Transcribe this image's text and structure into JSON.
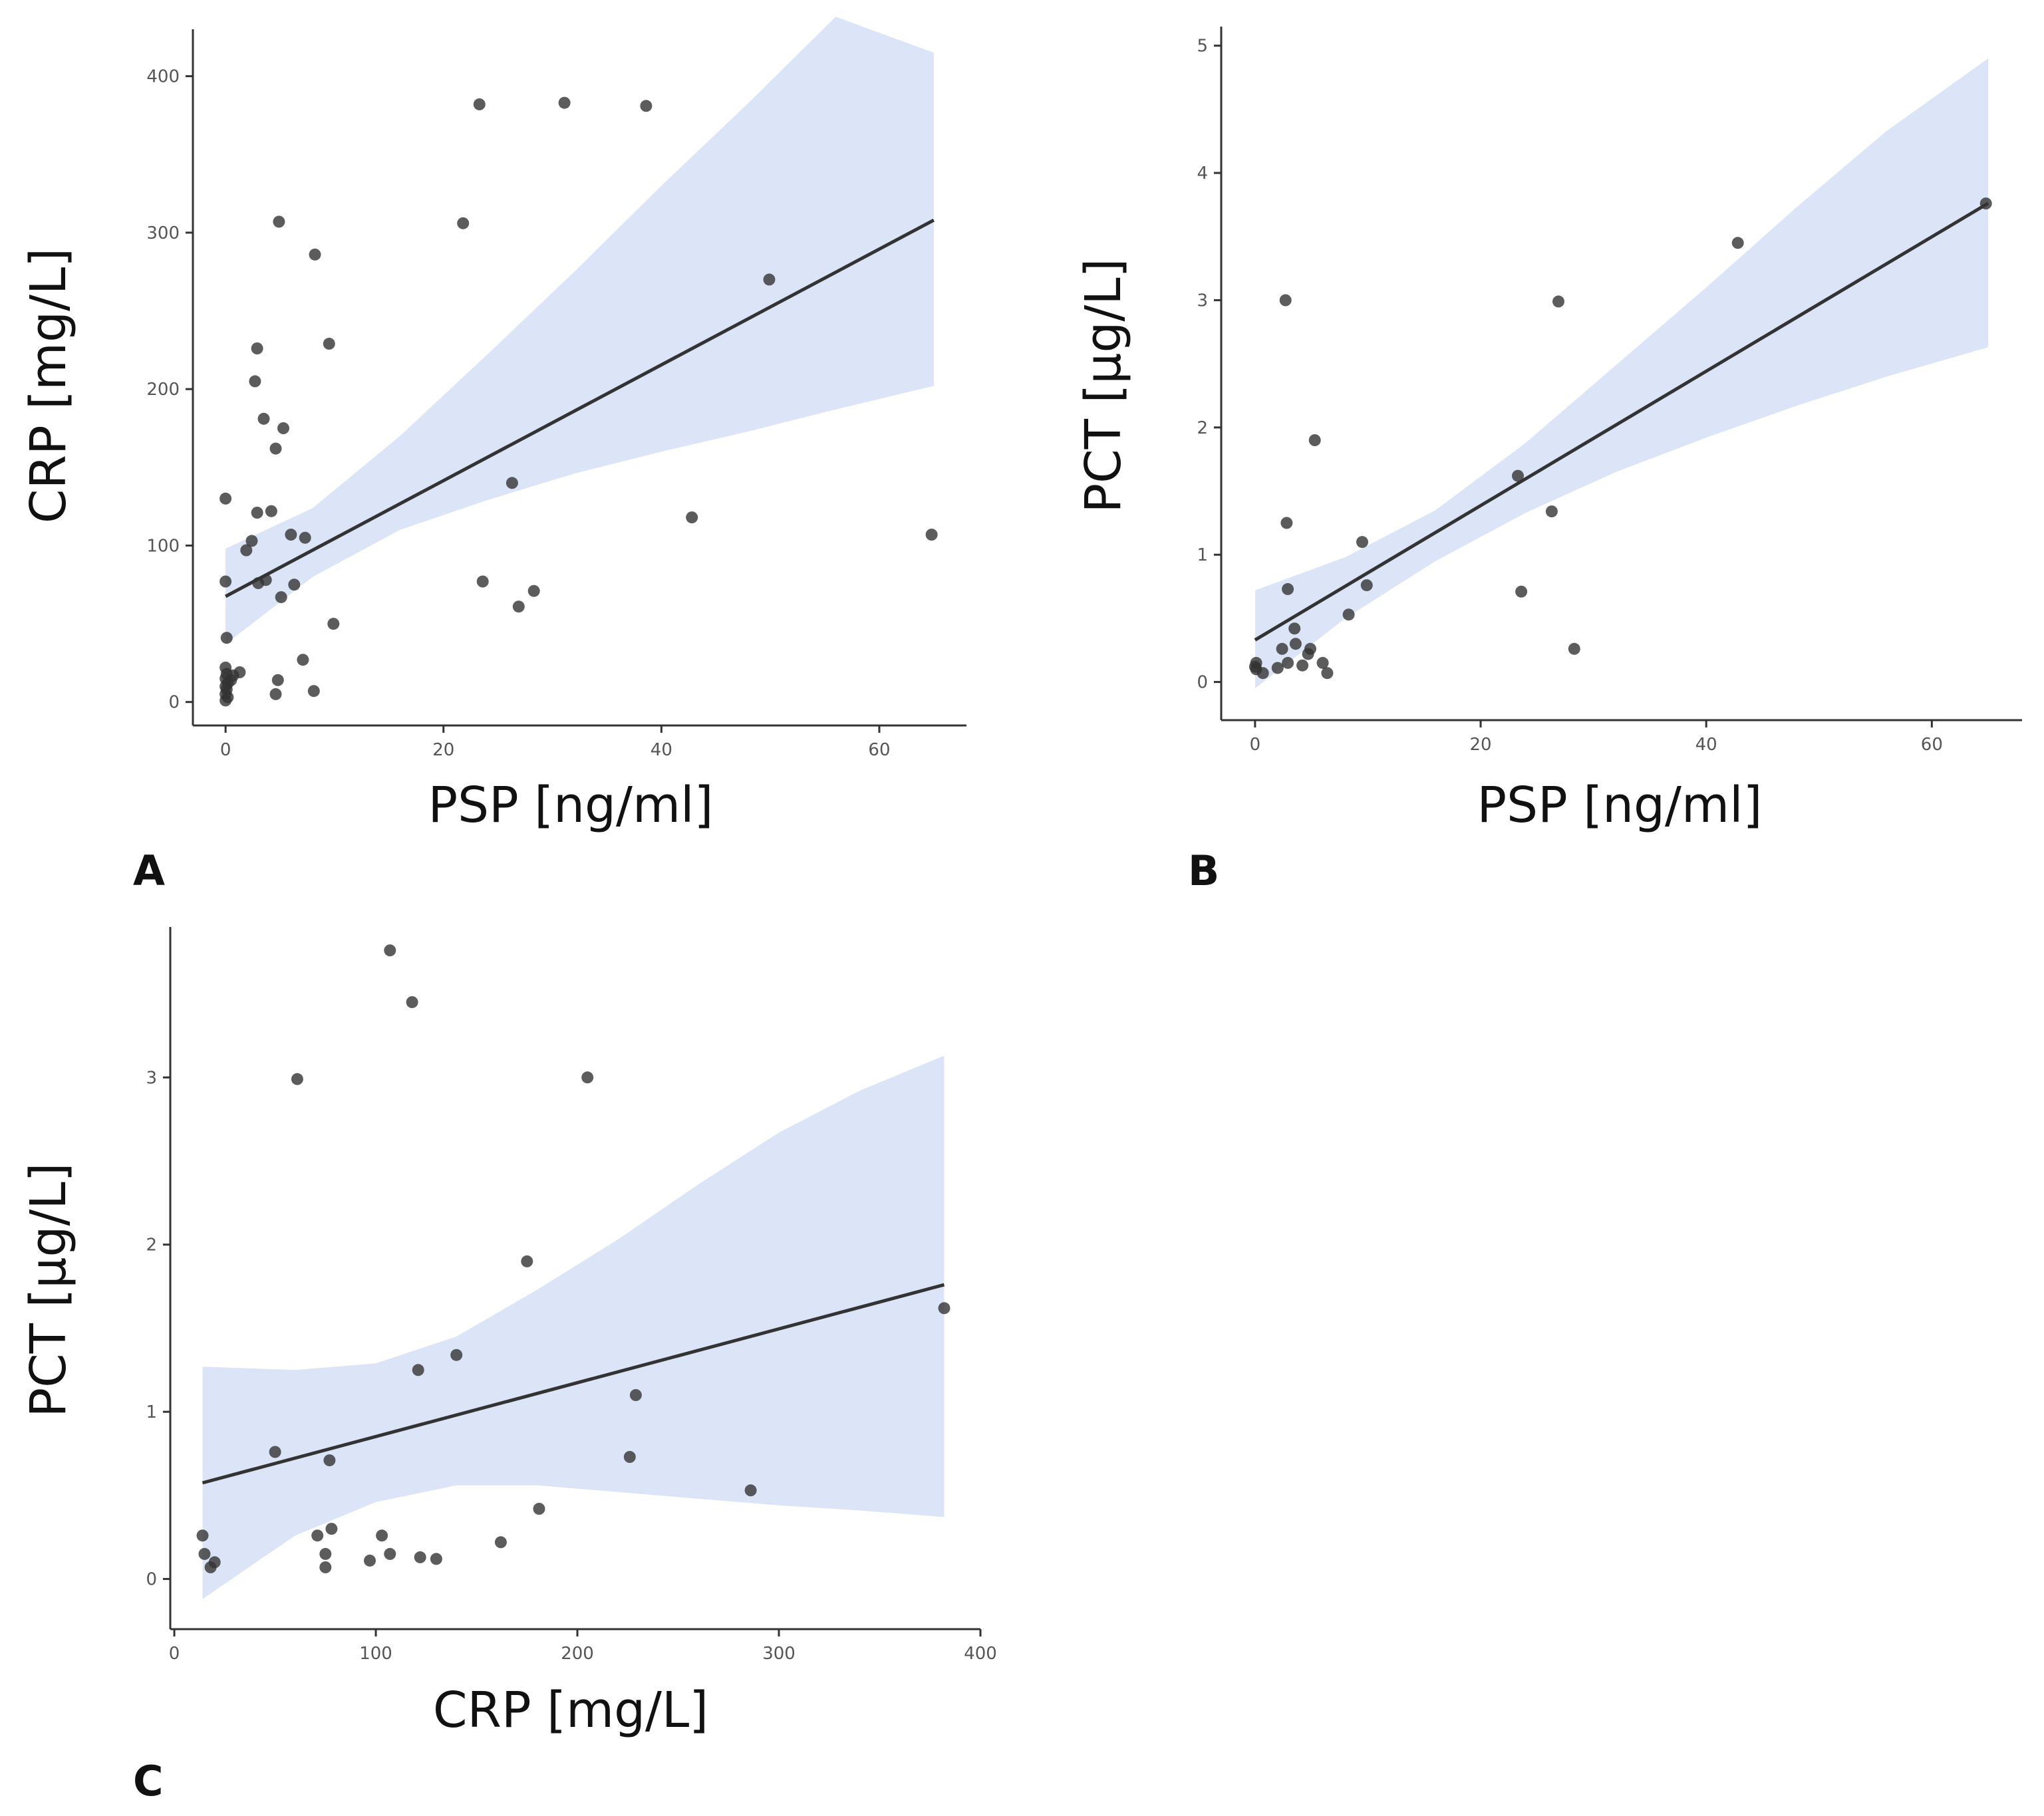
{
  "colors": {
    "band": "#dbe5f7",
    "line": "#333333",
    "point": "#333333"
  },
  "chart_data": [
    {
      "panel": "A",
      "type": "scatter",
      "xlabel": "PSP [ng/ml]",
      "ylabel": "CRP [mg/L]",
      "xlim": [
        -3,
        68
      ],
      "ylim": [
        -15,
        430
      ],
      "xticks": [
        0,
        20,
        40,
        60
      ],
      "yticks": [
        0,
        100,
        200,
        300,
        400
      ],
      "xtick_labels": [
        "0",
        "20",
        "40",
        "60"
      ],
      "ytick_labels": [
        "0",
        "100",
        "200",
        "300",
        "400"
      ],
      "regression": {
        "intercept": 67.5,
        "slope": 3.7,
        "x_range": [
          0,
          65
        ]
      },
      "ci_band": [
        {
          "x": 0,
          "lower": 37,
          "upper": 98
        },
        {
          "x": 8,
          "lower": 80,
          "upper": 124
        },
        {
          "x": 16,
          "lower": 110,
          "upper": 170
        },
        {
          "x": 24,
          "lower": 129,
          "upper": 222
        },
        {
          "x": 32,
          "lower": 146,
          "upper": 275
        },
        {
          "x": 40,
          "lower": 160,
          "upper": 330
        },
        {
          "x": 48,
          "lower": 173,
          "upper": 383
        },
        {
          "x": 56,
          "lower": 187,
          "upper": 438
        },
        {
          "x": 65,
          "lower": 202,
          "upper": 415
        }
      ],
      "points": [
        {
          "x": 0.0,
          "y": 130
        },
        {
          "x": 0.0,
          "y": 77
        },
        {
          "x": 0.1,
          "y": 41
        },
        {
          "x": 0.0,
          "y": 22
        },
        {
          "x": 0.1,
          "y": 18
        },
        {
          "x": 0.0,
          "y": 15
        },
        {
          "x": 0.2,
          "y": 12
        },
        {
          "x": 0.0,
          "y": 10
        },
        {
          "x": 0.1,
          "y": 8
        },
        {
          "x": 0.0,
          "y": 5
        },
        {
          "x": 0.2,
          "y": 3
        },
        {
          "x": 0.0,
          "y": 1
        },
        {
          "x": 0.5,
          "y": 14
        },
        {
          "x": 0.7,
          "y": 17
        },
        {
          "x": 1.3,
          "y": 19
        },
        {
          "x": 1.9,
          "y": 97
        },
        {
          "x": 2.4,
          "y": 103
        },
        {
          "x": 2.7,
          "y": 205
        },
        {
          "x": 2.9,
          "y": 226
        },
        {
          "x": 2.9,
          "y": 121
        },
        {
          "x": 3.0,
          "y": 76
        },
        {
          "x": 3.5,
          "y": 181
        },
        {
          "x": 3.7,
          "y": 78
        },
        {
          "x": 4.2,
          "y": 122
        },
        {
          "x": 4.6,
          "y": 162
        },
        {
          "x": 4.6,
          "y": 5
        },
        {
          "x": 4.8,
          "y": 14
        },
        {
          "x": 4.9,
          "y": 307
        },
        {
          "x": 5.1,
          "y": 67
        },
        {
          "x": 5.3,
          "y": 175
        },
        {
          "x": 6.0,
          "y": 107
        },
        {
          "x": 6.3,
          "y": 75
        },
        {
          "x": 7.1,
          "y": 27
        },
        {
          "x": 7.3,
          "y": 105
        },
        {
          "x": 8.1,
          "y": 7
        },
        {
          "x": 8.2,
          "y": 286
        },
        {
          "x": 9.5,
          "y": 229
        },
        {
          "x": 9.9,
          "y": 50
        },
        {
          "x": 21.8,
          "y": 306
        },
        {
          "x": 23.3,
          "y": 382
        },
        {
          "x": 23.6,
          "y": 77
        },
        {
          "x": 26.3,
          "y": 140
        },
        {
          "x": 26.9,
          "y": 61
        },
        {
          "x": 28.3,
          "y": 71
        },
        {
          "x": 31.1,
          "y": 383
        },
        {
          "x": 38.6,
          "y": 381
        },
        {
          "x": 42.8,
          "y": 118
        },
        {
          "x": 49.9,
          "y": 270
        },
        {
          "x": 64.8,
          "y": 107
        }
      ]
    },
    {
      "panel": "B",
      "type": "scatter",
      "xlabel": "PSP [ng/ml]",
      "ylabel": "PCT [µg/L]",
      "xlim": [
        -3,
        68
      ],
      "ylim": [
        -0.3,
        5.15
      ],
      "xticks": [
        0,
        20,
        40,
        60
      ],
      "yticks": [
        0,
        1,
        2,
        3,
        4,
        5
      ],
      "xtick_labels": [
        "0",
        "20",
        "40",
        "60"
      ],
      "ytick_labels": [
        "0",
        "1",
        "2",
        "3",
        "4",
        "5"
      ],
      "regression": {
        "intercept": 0.33,
        "slope": 0.0528,
        "x_range": [
          0,
          65
        ]
      },
      "ci_band": [
        {
          "x": 0,
          "lower": -0.05,
          "upper": 0.72
        },
        {
          "x": 8,
          "lower": 0.5,
          "upper": 0.98
        },
        {
          "x": 16,
          "lower": 0.95,
          "upper": 1.35
        },
        {
          "x": 24,
          "lower": 1.33,
          "upper": 1.88
        },
        {
          "x": 32,
          "lower": 1.65,
          "upper": 2.49
        },
        {
          "x": 40,
          "lower": 1.92,
          "upper": 3.1
        },
        {
          "x": 48,
          "lower": 2.17,
          "upper": 3.73
        },
        {
          "x": 56,
          "lower": 2.4,
          "upper": 4.33
        },
        {
          "x": 65,
          "lower": 2.63,
          "upper": 4.9
        }
      ],
      "points": [
        {
          "x": 0.0,
          "y": 0.12
        },
        {
          "x": 0.1,
          "y": 0.15
        },
        {
          "x": 0.1,
          "y": 0.1
        },
        {
          "x": 0.7,
          "y": 0.07
        },
        {
          "x": 2.0,
          "y": 0.11
        },
        {
          "x": 2.4,
          "y": 0.26
        },
        {
          "x": 2.7,
          "y": 3.0
        },
        {
          "x": 2.8,
          "y": 1.25
        },
        {
          "x": 2.9,
          "y": 0.73
        },
        {
          "x": 2.9,
          "y": 0.15
        },
        {
          "x": 3.5,
          "y": 0.42
        },
        {
          "x": 3.6,
          "y": 0.3
        },
        {
          "x": 4.2,
          "y": 0.13
        },
        {
          "x": 4.7,
          "y": 0.22
        },
        {
          "x": 4.9,
          "y": 0.26
        },
        {
          "x": 5.3,
          "y": 1.9
        },
        {
          "x": 6.0,
          "y": 0.15
        },
        {
          "x": 6.4,
          "y": 0.07
        },
        {
          "x": 8.3,
          "y": 0.53
        },
        {
          "x": 9.5,
          "y": 1.1
        },
        {
          "x": 9.9,
          "y": 0.76
        },
        {
          "x": 23.3,
          "y": 1.62
        },
        {
          "x": 23.6,
          "y": 0.71
        },
        {
          "x": 26.3,
          "y": 1.34
        },
        {
          "x": 26.9,
          "y": 2.99
        },
        {
          "x": 28.3,
          "y": 0.26
        },
        {
          "x": 42.8,
          "y": 3.45
        },
        {
          "x": 64.8,
          "y": 3.76
        }
      ]
    },
    {
      "panel": "C",
      "type": "scatter",
      "xlabel": "CRP [mg/L]",
      "ylabel": "PCT [µg/L]",
      "xlim": [
        -2,
        400
      ],
      "ylim": [
        -0.3,
        3.9
      ],
      "xticks": [
        0,
        100,
        200,
        300,
        400
      ],
      "yticks": [
        0,
        1,
        2,
        3
      ],
      "xtick_labels": [
        "0",
        "100",
        "200",
        "300",
        "400"
      ],
      "ytick_labels": [
        "0",
        "1",
        "2",
        "3"
      ],
      "regression": {
        "intercept": 0.53,
        "slope": 0.00322,
        "x_range": [
          14,
          382
        ]
      },
      "ci_band": [
        {
          "x": 14,
          "lower": -0.12,
          "upper": 1.27
        },
        {
          "x": 60,
          "lower": 0.26,
          "upper": 1.25
        },
        {
          "x": 100,
          "lower": 0.46,
          "upper": 1.29
        },
        {
          "x": 140,
          "lower": 0.56,
          "upper": 1.45
        },
        {
          "x": 180,
          "lower": 0.56,
          "upper": 1.73
        },
        {
          "x": 220,
          "lower": 0.52,
          "upper": 2.03
        },
        {
          "x": 260,
          "lower": 0.48,
          "upper": 2.36
        },
        {
          "x": 300,
          "lower": 0.44,
          "upper": 2.67
        },
        {
          "x": 340,
          "lower": 0.41,
          "upper": 2.92
        },
        {
          "x": 382,
          "lower": 0.37,
          "upper": 3.13
        }
      ],
      "points": [
        {
          "x": 14,
          "y": 0.26
        },
        {
          "x": 15,
          "y": 0.15
        },
        {
          "x": 18,
          "y": 0.07
        },
        {
          "x": 20,
          "y": 0.1
        },
        {
          "x": 50,
          "y": 0.76
        },
        {
          "x": 61,
          "y": 2.99
        },
        {
          "x": 71,
          "y": 0.26
        },
        {
          "x": 75,
          "y": 0.15
        },
        {
          "x": 75,
          "y": 0.07
        },
        {
          "x": 77,
          "y": 0.71
        },
        {
          "x": 78,
          "y": 0.3
        },
        {
          "x": 97,
          "y": 0.11
        },
        {
          "x": 103,
          "y": 0.26
        },
        {
          "x": 107,
          "y": 0.15
        },
        {
          "x": 107,
          "y": 3.76
        },
        {
          "x": 118,
          "y": 3.45
        },
        {
          "x": 121,
          "y": 1.25
        },
        {
          "x": 122,
          "y": 0.13
        },
        {
          "x": 130,
          "y": 0.12
        },
        {
          "x": 140,
          "y": 1.34
        },
        {
          "x": 162,
          "y": 0.22
        },
        {
          "x": 175,
          "y": 1.9
        },
        {
          "x": 181,
          "y": 0.42
        },
        {
          "x": 205,
          "y": 3.0
        },
        {
          "x": 226,
          "y": 0.73
        },
        {
          "x": 229,
          "y": 1.1
        },
        {
          "x": 286,
          "y": 0.53
        },
        {
          "x": 382,
          "y": 1.62
        }
      ]
    }
  ]
}
